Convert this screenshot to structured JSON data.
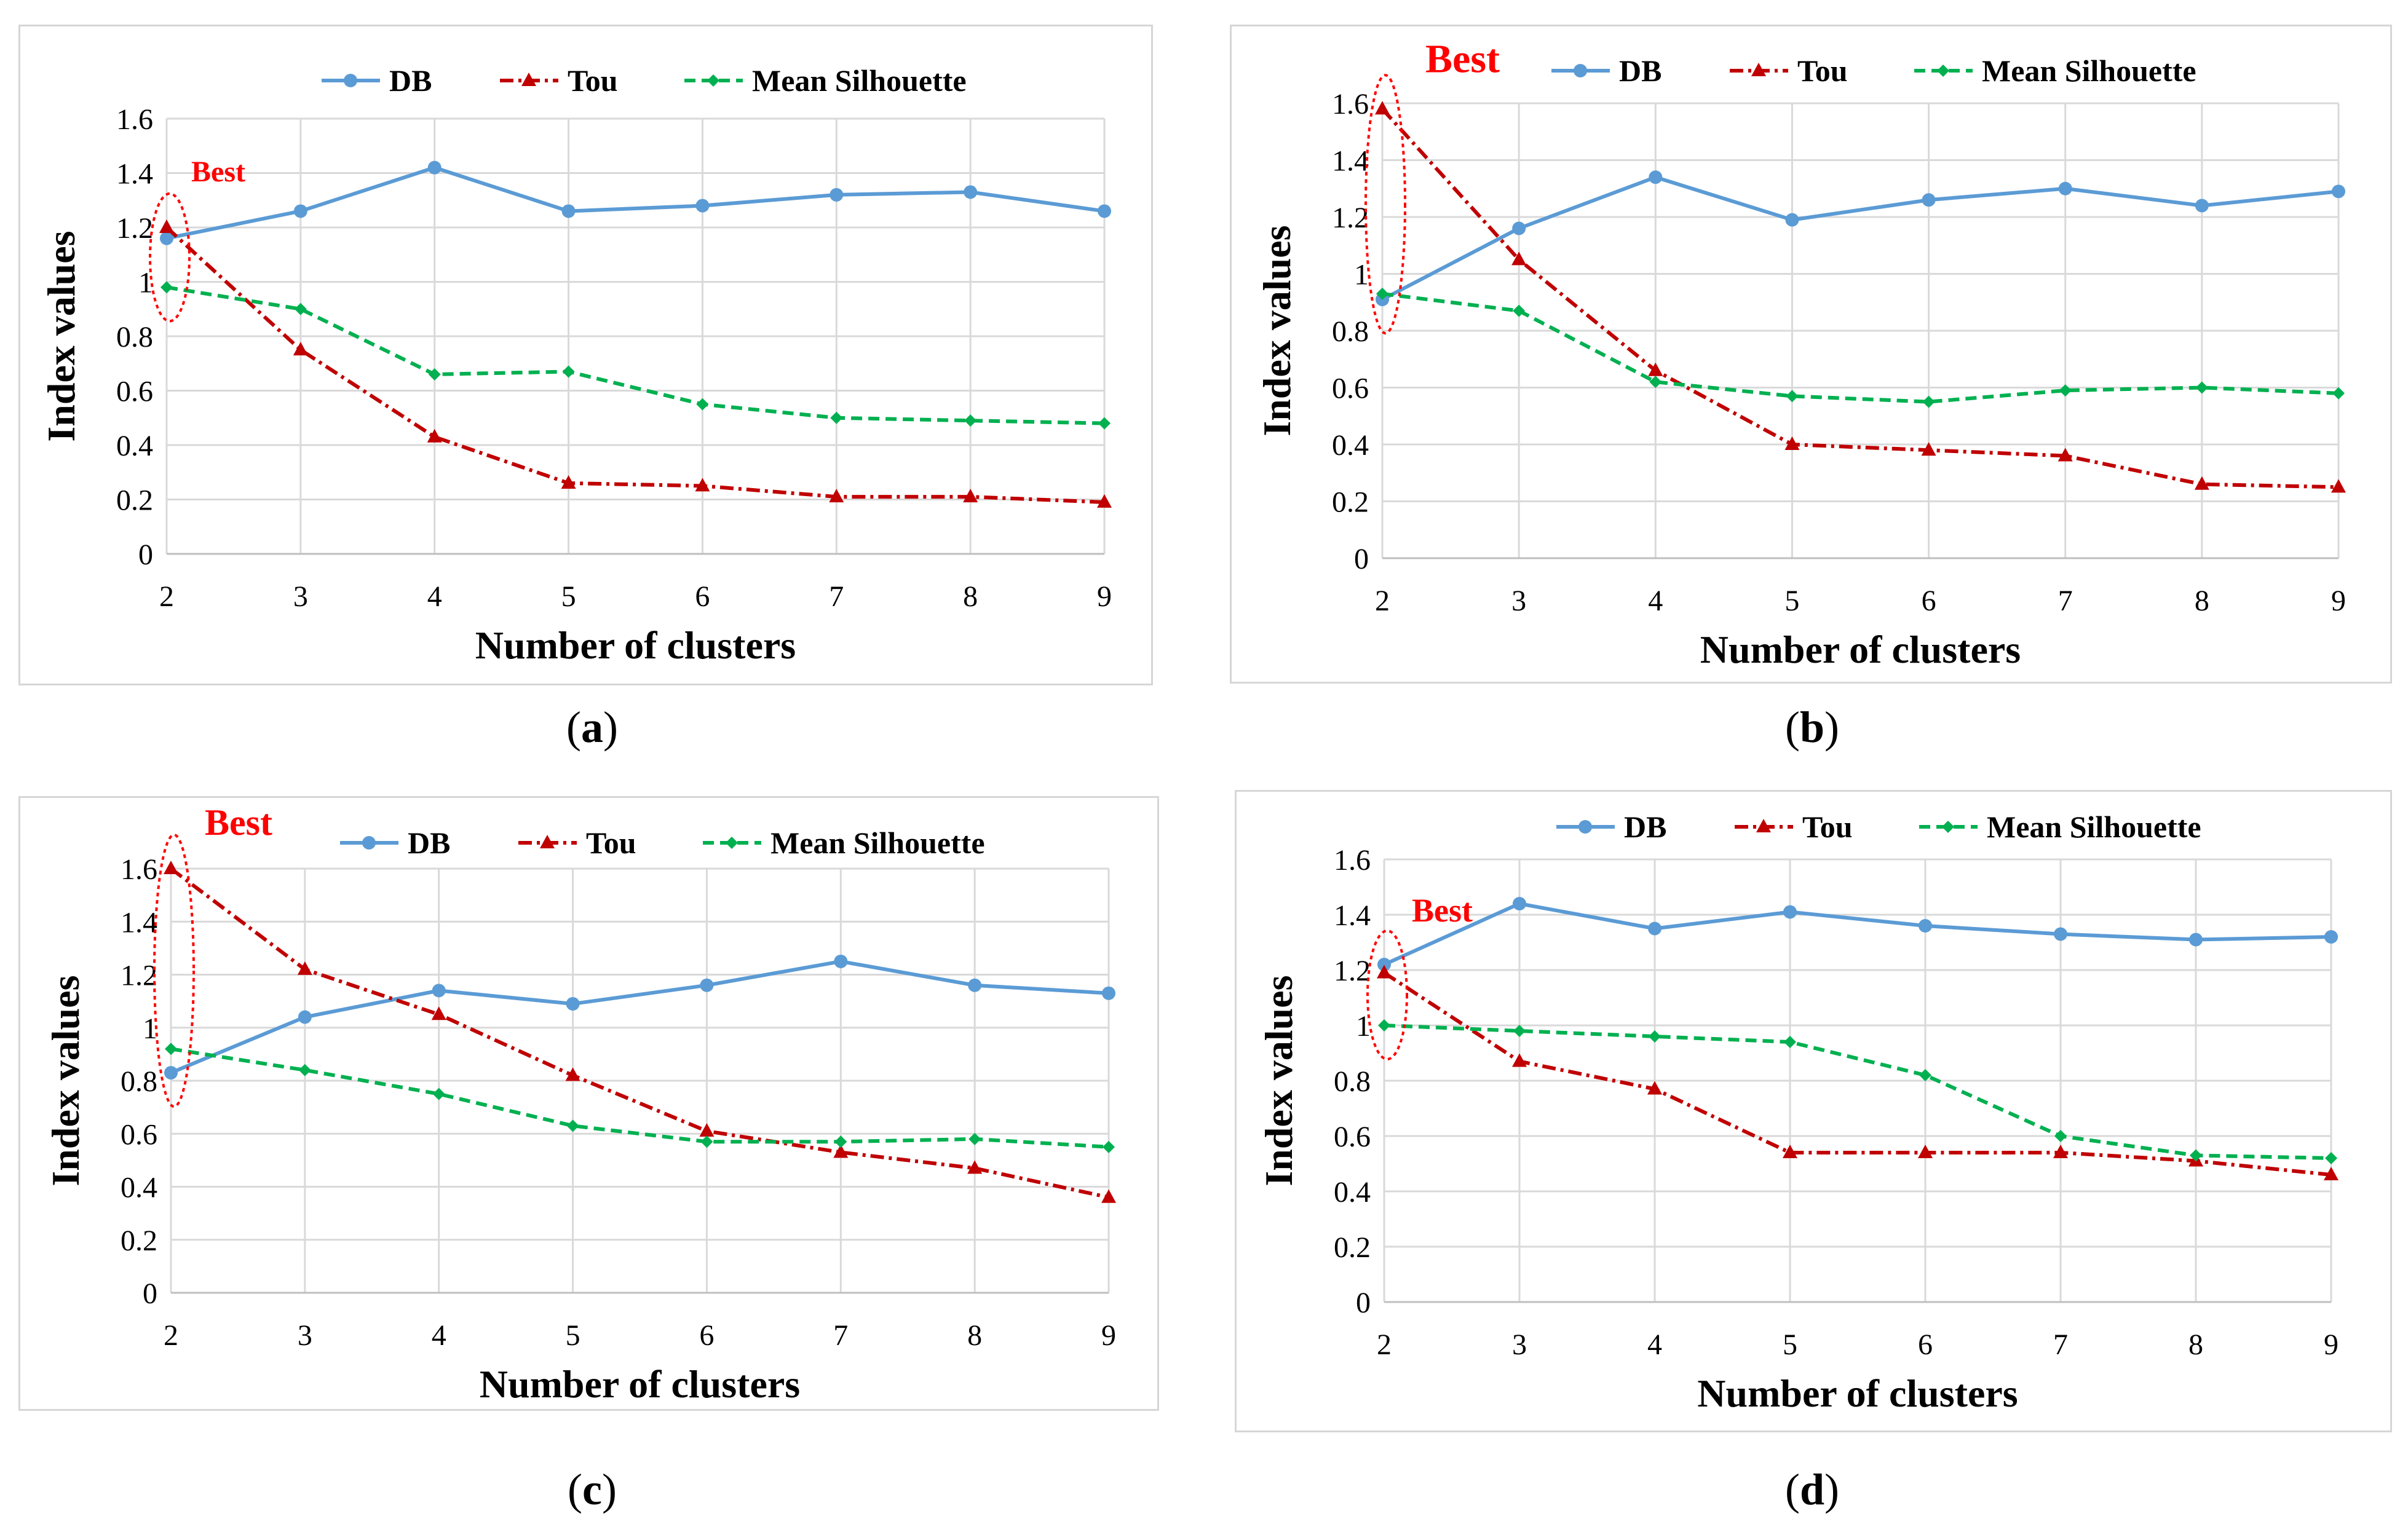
{
  "chart_data": [
    {
      "type": "line",
      "panel_label": "a",
      "xlabel": "Number of clusters",
      "ylabel": "Index values",
      "x": [
        2,
        3,
        4,
        5,
        6,
        7,
        8,
        9
      ],
      "ylim": [
        0,
        1.6
      ],
      "yticks": [
        "0",
        "0.2",
        "0.4",
        "0.6",
        "0.8",
        "1",
        "1.2",
        "1.4",
        "1.6"
      ],
      "grid": true,
      "legend": "top",
      "annotation": {
        "text": "Best",
        "x": 2
      },
      "series": [
        {
          "name": "DB",
          "color": "#5b9bd5",
          "style": "solid",
          "marker": "circle",
          "values": [
            1.16,
            1.26,
            1.42,
            1.26,
            1.28,
            1.32,
            1.33,
            1.26
          ]
        },
        {
          "name": "Tou",
          "color": "#c00000",
          "style": "dashdot",
          "marker": "triangle",
          "values": [
            1.2,
            0.75,
            0.43,
            0.26,
            0.25,
            0.21,
            0.21,
            0.19
          ]
        },
        {
          "name": "Mean Silhouette",
          "color": "#00b050",
          "style": "dashed",
          "marker": "diamond",
          "values": [
            0.98,
            0.9,
            0.66,
            0.67,
            0.55,
            0.5,
            0.49,
            0.48
          ]
        }
      ]
    },
    {
      "type": "line",
      "panel_label": "b",
      "xlabel": "Number of clusters",
      "ylabel": "Index values",
      "x": [
        2,
        3,
        4,
        5,
        6,
        7,
        8,
        9
      ],
      "ylim": [
        0,
        1.6
      ],
      "yticks": [
        "0",
        "0.2",
        "0.4",
        "0.6",
        "0.8",
        "1",
        "1.2",
        "1.4",
        "1.6"
      ],
      "grid": true,
      "legend": "top",
      "annotation": {
        "text": "Best",
        "x": 2
      },
      "series": [
        {
          "name": "DB",
          "color": "#5b9bd5",
          "style": "solid",
          "marker": "circle",
          "values": [
            0.91,
            1.16,
            1.34,
            1.19,
            1.26,
            1.3,
            1.24,
            1.29
          ]
        },
        {
          "name": "Tou",
          "color": "#c00000",
          "style": "dashdot",
          "marker": "triangle",
          "values": [
            1.58,
            1.05,
            0.66,
            0.4,
            0.38,
            0.36,
            0.26,
            0.25
          ]
        },
        {
          "name": "Mean Silhouette",
          "color": "#00b050",
          "style": "dashed",
          "marker": "diamond",
          "values": [
            0.93,
            0.87,
            0.62,
            0.57,
            0.55,
            0.59,
            0.6,
            0.58
          ]
        }
      ]
    },
    {
      "type": "line",
      "panel_label": "c",
      "xlabel": "Number of clusters",
      "ylabel": "Index values",
      "x": [
        2,
        3,
        4,
        5,
        6,
        7,
        8,
        9
      ],
      "ylim": [
        0,
        1.6
      ],
      "yticks": [
        "0",
        "0.2",
        "0.4",
        "0.6",
        "0.8",
        "1",
        "1.2",
        "1.4",
        "1.6"
      ],
      "grid": true,
      "legend": "top",
      "annotation": {
        "text": "Best",
        "x": 2
      },
      "series": [
        {
          "name": "DB",
          "color": "#5b9bd5",
          "style": "solid",
          "marker": "circle",
          "values": [
            0.83,
            1.04,
            1.14,
            1.09,
            1.16,
            1.25,
            1.16,
            1.13
          ]
        },
        {
          "name": "Tou",
          "color": "#c00000",
          "style": "dashdot",
          "marker": "triangle",
          "values": [
            1.6,
            1.22,
            1.05,
            0.82,
            0.61,
            0.53,
            0.47,
            0.36
          ]
        },
        {
          "name": "Mean Silhouette",
          "color": "#00b050",
          "style": "dashed",
          "marker": "diamond",
          "values": [
            0.92,
            0.84,
            0.75,
            0.63,
            0.57,
            0.57,
            0.58,
            0.55
          ]
        }
      ]
    },
    {
      "type": "line",
      "panel_label": "d",
      "xlabel": "Number of clusters",
      "ylabel": "Index values",
      "x": [
        2,
        3,
        4,
        5,
        6,
        7,
        8,
        9
      ],
      "ylim": [
        0,
        1.6
      ],
      "yticks": [
        "0",
        "0.2",
        "0.4",
        "0.6",
        "0.8",
        "1",
        "1.2",
        "1.4",
        "1.6"
      ],
      "grid": true,
      "legend": "top",
      "annotation": {
        "text": "Best",
        "x": 2
      },
      "series": [
        {
          "name": "DB",
          "color": "#5b9bd5",
          "style": "solid",
          "marker": "circle",
          "values": [
            1.22,
            1.44,
            1.35,
            1.41,
            1.36,
            1.33,
            1.31,
            1.32
          ]
        },
        {
          "name": "Tou",
          "color": "#c00000",
          "style": "dashdot",
          "marker": "triangle",
          "values": [
            1.19,
            0.87,
            0.77,
            0.54,
            0.54,
            0.54,
            0.51,
            0.46
          ]
        },
        {
          "name": "Mean Silhouette",
          "color": "#00b050",
          "style": "dashed",
          "marker": "diamond",
          "values": [
            1.0,
            0.98,
            0.96,
            0.94,
            0.82,
            0.6,
            0.53,
            0.52
          ]
        }
      ]
    }
  ]
}
